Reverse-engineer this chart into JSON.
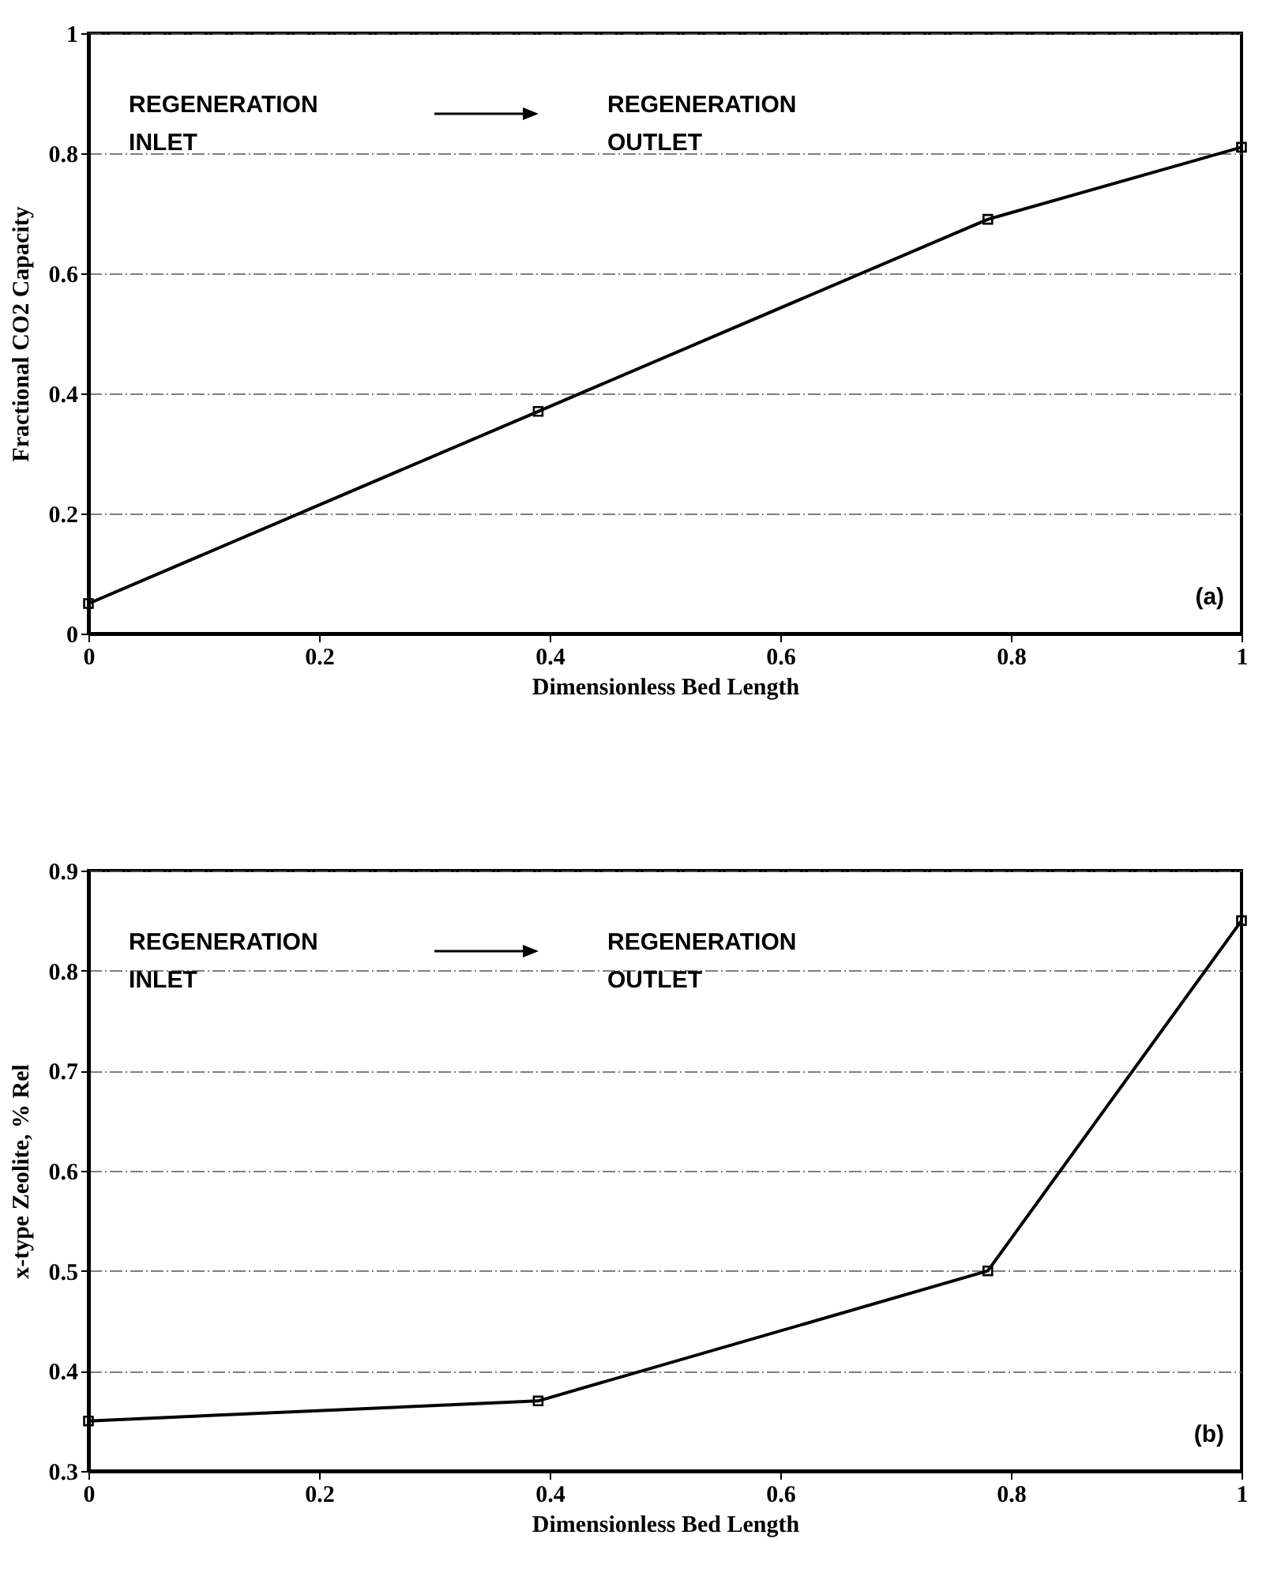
{
  "chart_data": [
    {
      "type": "line",
      "xlabel": "Dimensionless Bed Length",
      "ylabel": "Fractional CO2 Capacity",
      "x": [
        0,
        0.39,
        0.78,
        1
      ],
      "series": [
        {
          "color": "#000000",
          "values": [
            0.05,
            0.37,
            0.69,
            0.81
          ]
        }
      ],
      "xlim": [
        0,
        1
      ],
      "ylim": [
        0,
        1
      ],
      "xticks": [
        0,
        0.2,
        0.4,
        0.6,
        0.8,
        1
      ],
      "yticks": [
        0,
        0.2,
        0.4,
        0.6,
        0.8,
        1
      ],
      "grid": "y",
      "marker": "square",
      "line_style": "solid",
      "annotations": [
        "REGENERATION\nINLET",
        "REGENERATION\nOUTLET",
        "(a)"
      ]
    },
    {
      "type": "line",
      "xlabel": "Dimensionless Bed Length",
      "ylabel": "x-type Zeolite, % Rel",
      "x": [
        0,
        0.39,
        0.78,
        1
      ],
      "series": [
        {
          "color": "#000000",
          "values": [
            0.35,
            0.37,
            0.5,
            0.85
          ]
        }
      ],
      "xlim": [
        0,
        1
      ],
      "ylim": [
        0.3,
        0.9
      ],
      "xticks": [
        0,
        0.2,
        0.4,
        0.6,
        0.8,
        1
      ],
      "yticks": [
        0.3,
        0.4,
        0.5,
        0.6,
        0.7,
        0.8,
        0.9
      ],
      "grid": "y",
      "marker": "square",
      "line_style": "solid",
      "annotations": [
        "REGENERATION\nINLET",
        "REGENERATION\nOUTLET",
        "(b)"
      ]
    }
  ]
}
